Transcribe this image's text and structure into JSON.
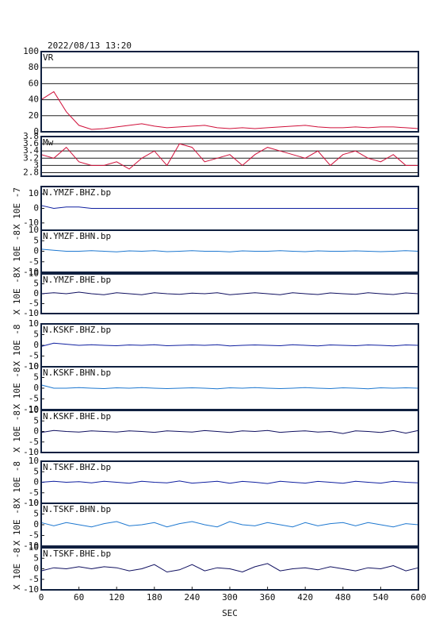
{
  "chart_data": [
    {
      "type": "line",
      "title": "2022/08/13 13:20",
      "x": [
        0,
        20,
        40,
        60,
        80,
        100,
        120,
        140,
        160,
        180,
        200,
        220,
        240,
        260,
        280,
        300,
        320,
        340,
        360,
        380,
        400,
        420,
        440,
        460,
        480,
        500,
        520,
        540,
        560,
        580,
        600
      ],
      "xlim": [
        0,
        600
      ],
      "ylim": [
        0,
        100
      ],
      "yticks": [
        0,
        20,
        40,
        60,
        80,
        100
      ],
      "grid": true,
      "series": [
        {
          "name": "VR",
          "color": "#d0103a",
          "values": [
            40,
            50,
            25,
            8,
            3,
            4,
            6,
            8,
            10,
            7,
            5,
            6,
            7,
            8,
            5,
            4,
            5,
            4,
            5,
            6,
            7,
            8,
            6,
            5,
            5,
            6,
            5,
            6,
            6,
            5,
            4
          ]
        }
      ]
    },
    {
      "type": "line",
      "x": [
        0,
        20,
        40,
        60,
        80,
        100,
        120,
        140,
        160,
        180,
        200,
        220,
        240,
        260,
        280,
        300,
        320,
        340,
        360,
        380,
        400,
        420,
        440,
        460,
        480,
        500,
        520,
        540,
        560,
        580,
        600
      ],
      "xlim": [
        0,
        600
      ],
      "ylim": [
        2.7,
        3.8
      ],
      "yticks": [
        2.8,
        3.0,
        3.2,
        3.4,
        3.6,
        3.8
      ],
      "grid": true,
      "series": [
        {
          "name": "Mw",
          "color": "#d0103a",
          "values": [
            3.3,
            3.2,
            3.5,
            3.1,
            3.0,
            3.0,
            3.1,
            2.9,
            3.2,
            3.4,
            3.0,
            3.6,
            3.5,
            3.1,
            3.2,
            3.3,
            3.0,
            3.3,
            3.5,
            3.4,
            3.3,
            3.2,
            3.4,
            3.0,
            3.3,
            3.4,
            3.2,
            3.1,
            3.3,
            3.0,
            3.0
          ]
        }
      ]
    },
    {
      "type": "line",
      "ylabel": "X 10E -7",
      "x": [
        0,
        20,
        40,
        60,
        80,
        100,
        120,
        140,
        160,
        180,
        200,
        220,
        240,
        260,
        280,
        300,
        320,
        340,
        360,
        380,
        400,
        420,
        440,
        460,
        480,
        500,
        520,
        540,
        560,
        580,
        600
      ],
      "xlim": [
        0,
        600
      ],
      "ylim": [
        -15,
        15
      ],
      "yticks": [
        -10,
        0,
        10
      ],
      "grid": false,
      "series": [
        {
          "name": "N.YMZF.BHZ.bp",
          "color": "#1020a0",
          "values": [
            2,
            0,
            1,
            1,
            0,
            0,
            0,
            0,
            0,
            0,
            0,
            0,
            0,
            0,
            0,
            0,
            0,
            0,
            0,
            0,
            0,
            0,
            0,
            0,
            0,
            0,
            0,
            0,
            0,
            0,
            0
          ]
        }
      ]
    },
    {
      "type": "line",
      "ylabel": "X 10E -8",
      "x": [
        0,
        20,
        40,
        60,
        80,
        100,
        120,
        140,
        160,
        180,
        200,
        220,
        240,
        260,
        280,
        300,
        320,
        340,
        360,
        380,
        400,
        420,
        440,
        460,
        480,
        500,
        520,
        540,
        560,
        580,
        600
      ],
      "xlim": [
        0,
        600
      ],
      "ylim": [
        -10,
        10
      ],
      "yticks": [
        -10,
        -5,
        0,
        5,
        10
      ],
      "grid": false,
      "series": [
        {
          "name": "N.YMZF.BHN.bp",
          "color": "#1e78d0",
          "values": [
            1,
            0.5,
            0,
            0,
            0.3,
            0,
            -0.3,
            0.2,
            0,
            0.3,
            -0.2,
            0,
            0.3,
            0,
            0,
            -0.3,
            0.2,
            0,
            0,
            0.3,
            0,
            -0.2,
            0.2,
            0,
            0,
            0.2,
            0,
            -0.2,
            0,
            0.3,
            0
          ]
        }
      ]
    },
    {
      "type": "line",
      "ylabel": "X 10E -8",
      "x": [
        0,
        20,
        40,
        60,
        80,
        100,
        120,
        140,
        160,
        180,
        200,
        220,
        240,
        260,
        280,
        300,
        320,
        340,
        360,
        380,
        400,
        420,
        440,
        460,
        480,
        500,
        520,
        540,
        560,
        580,
        600
      ],
      "xlim": [
        0,
        600
      ],
      "ylim": [
        -10,
        10
      ],
      "yticks": [
        -10,
        -5,
        0,
        5,
        10
      ],
      "grid": false,
      "series": [
        {
          "name": "N.YMZF.BHE.bp",
          "color": "#101060",
          "values": [
            0,
            0.5,
            0,
            0.8,
            0,
            -0.5,
            0.5,
            0,
            -0.5,
            0.5,
            0,
            -0.3,
            0.3,
            0,
            0.5,
            -0.5,
            0,
            0.5,
            0,
            -0.5,
            0.5,
            0,
            -0.4,
            0.4,
            0,
            -0.3,
            0.5,
            0,
            -0.4,
            0.4,
            0
          ]
        }
      ]
    },
    {
      "type": "line",
      "ylabel": "X 10E -8",
      "x": [
        0,
        20,
        40,
        60,
        80,
        100,
        120,
        140,
        160,
        180,
        200,
        220,
        240,
        260,
        280,
        300,
        320,
        340,
        360,
        380,
        400,
        420,
        440,
        460,
        480,
        500,
        520,
        540,
        560,
        580,
        600
      ],
      "xlim": [
        0,
        600
      ],
      "ylim": [
        -10,
        10
      ],
      "yticks": [
        -10,
        -5,
        0,
        5,
        10
      ],
      "grid": false,
      "series": [
        {
          "name": "N.KSKF.BHZ.bp",
          "color": "#1020a0",
          "values": [
            -0.5,
            1,
            0.5,
            0,
            0.3,
            0,
            -0.2,
            0.2,
            0,
            0.3,
            -0.2,
            0,
            0.2,
            0,
            0.3,
            -0.3,
            0,
            0.2,
            0,
            -0.2,
            0.3,
            0,
            -0.3,
            0.2,
            0,
            -0.2,
            0.2,
            0,
            -0.3,
            0.2,
            0
          ]
        }
      ]
    },
    {
      "type": "line",
      "ylabel": "X 10E -8",
      "x": [
        0,
        20,
        40,
        60,
        80,
        100,
        120,
        140,
        160,
        180,
        200,
        220,
        240,
        260,
        280,
        300,
        320,
        340,
        360,
        380,
        400,
        420,
        440,
        460,
        480,
        500,
        520,
        540,
        560,
        580,
        600
      ],
      "xlim": [
        0,
        600
      ],
      "ylim": [
        -10,
        10
      ],
      "yticks": [
        -10,
        -5,
        0,
        5,
        10
      ],
      "grid": false,
      "series": [
        {
          "name": "N.KSKF.BHN.bp",
          "color": "#1e78d0",
          "values": [
            1.5,
            0,
            0,
            0.3,
            0,
            -0.2,
            0.2,
            0,
            0.3,
            0,
            -0.2,
            0,
            0.2,
            0,
            -0.3,
            0.2,
            0,
            0.3,
            0,
            -0.2,
            0,
            0.3,
            0,
            -0.2,
            0.2,
            0,
            -0.3,
            0.2,
            0,
            0.2,
            0
          ]
        }
      ]
    },
    {
      "type": "line",
      "ylabel": "X 10E -8",
      "x": [
        0,
        20,
        40,
        60,
        80,
        100,
        120,
        140,
        160,
        180,
        200,
        220,
        240,
        260,
        280,
        300,
        320,
        340,
        360,
        380,
        400,
        420,
        440,
        460,
        480,
        500,
        520,
        540,
        560,
        580,
        600
      ],
      "xlim": [
        0,
        600
      ],
      "ylim": [
        -10,
        10
      ],
      "yticks": [
        -10,
        -5,
        0,
        5,
        10
      ],
      "grid": false,
      "series": [
        {
          "name": "N.KSKF.BHE.bp",
          "color": "#101060",
          "values": [
            -0.5,
            0.5,
            0,
            -0.3,
            0.3,
            0,
            -0.3,
            0.3,
            0,
            -0.4,
            0.3,
            0,
            -0.3,
            0.4,
            0,
            -0.5,
            0.3,
            0,
            0.5,
            -0.4,
            0,
            0.3,
            -0.3,
            0,
            -1,
            0.3,
            0,
            -0.5,
            0.4,
            -0.8,
            0.5
          ]
        }
      ]
    },
    {
      "type": "line",
      "ylabel": "X 10E -8",
      "x": [
        0,
        20,
        40,
        60,
        80,
        100,
        120,
        140,
        160,
        180,
        200,
        220,
        240,
        260,
        280,
        300,
        320,
        340,
        360,
        380,
        400,
        420,
        440,
        460,
        480,
        500,
        520,
        540,
        560,
        580,
        600
      ],
      "xlim": [
        0,
        600
      ],
      "ylim": [
        -10,
        10
      ],
      "yticks": [
        -10,
        -5,
        0,
        5,
        10
      ],
      "grid": false,
      "series": [
        {
          "name": "N.TSKF.BHZ.bp",
          "color": "#1020a0",
          "values": [
            0,
            0.5,
            0,
            0.3,
            -0.3,
            0.5,
            0,
            -0.5,
            0.5,
            0,
            -0.3,
            0.6,
            -0.4,
            0,
            0.5,
            -0.5,
            0.4,
            0,
            -0.6,
            0.5,
            0,
            -0.4,
            0.4,
            0,
            -0.5,
            0.5,
            0,
            -0.4,
            0.5,
            0,
            -0.3
          ]
        }
      ]
    },
    {
      "type": "line",
      "ylabel": "X 10E -8",
      "x": [
        0,
        20,
        40,
        60,
        80,
        100,
        120,
        140,
        160,
        180,
        200,
        220,
        240,
        260,
        280,
        300,
        320,
        340,
        360,
        380,
        400,
        420,
        440,
        460,
        480,
        500,
        520,
        540,
        560,
        580,
        600
      ],
      "xlim": [
        0,
        600
      ],
      "ylim": [
        -10,
        10
      ],
      "yticks": [
        -10,
        -5,
        0,
        5,
        10
      ],
      "grid": false,
      "series": [
        {
          "name": "N.TSKF.BHN.bp",
          "color": "#1e78d0",
          "values": [
            1,
            -0.5,
            1,
            0,
            -1,
            0.5,
            1.5,
            -0.5,
            0,
            1,
            -1,
            0.5,
            1.5,
            0,
            -1,
            1.5,
            0,
            -0.5,
            1,
            0,
            -1,
            1,
            -0.5,
            0.5,
            1,
            -0.5,
            1,
            0,
            -1,
            0.5,
            0
          ]
        }
      ]
    },
    {
      "type": "line",
      "ylabel": "X 10E -8",
      "x": [
        0,
        20,
        40,
        60,
        80,
        100,
        120,
        140,
        160,
        180,
        200,
        220,
        240,
        260,
        280,
        300,
        320,
        340,
        360,
        380,
        400,
        420,
        440,
        460,
        480,
        500,
        520,
        540,
        560,
        580,
        600
      ],
      "xlim": [
        0,
        600
      ],
      "xticks": [
        0,
        60,
        120,
        180,
        240,
        300,
        360,
        420,
        480,
        540,
        600
      ],
      "xlabel": "SEC",
      "ylim": [
        -10,
        10
      ],
      "yticks": [
        -10,
        -5,
        0,
        5,
        10
      ],
      "grid": false,
      "series": [
        {
          "name": "N.TSKF.BHE.bp",
          "color": "#101060",
          "values": [
            -1,
            0.5,
            0,
            1,
            0,
            1,
            0.5,
            -1,
            0,
            2,
            -1.5,
            -0.5,
            2,
            -1,
            0.5,
            0,
            -1.5,
            1,
            2.5,
            -1,
            0,
            0.5,
            -0.5,
            1,
            0,
            -1,
            0.5,
            0,
            1.5,
            -1,
            0.5
          ]
        }
      ]
    }
  ]
}
